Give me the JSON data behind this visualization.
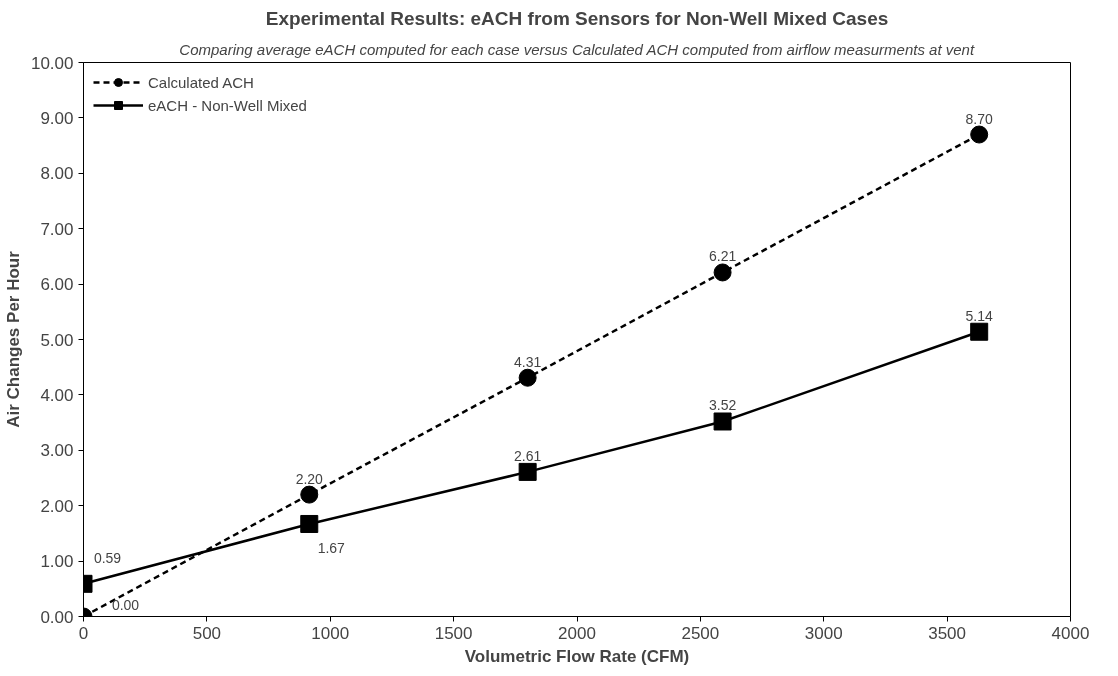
{
  "chart_data": {
    "type": "line",
    "title": "Experimental Results: eACH from Sensors for Non-Well Mixed Cases",
    "subtitle": "Comparing average eACH computed for each case versus Calculated ACH computed from airflow measurments at vent",
    "xlabel": "Volumetric Flow Rate (CFM)",
    "ylabel": "Air Changes Per Hour",
    "x": [
      0,
      915,
      1800,
      2590,
      3630
    ],
    "series": [
      {
        "name": "Calculated ACH",
        "color": "#000000",
        "marker": "circle",
        "line_style": "dashed",
        "values": [
          0.0,
          2.2,
          4.31,
          6.21,
          8.7
        ],
        "value_labels": [
          "0.00",
          "2.20",
          "4.31",
          "6.21",
          "8.70"
        ]
      },
      {
        "name": "eACH - Non-Well Mixed",
        "color": "#000000",
        "marker": "square",
        "line_style": "solid",
        "values": [
          0.59,
          1.67,
          2.61,
          3.52,
          5.14
        ],
        "value_labels": [
          "0.59",
          "1.67",
          "2.61",
          "3.52",
          "5.14"
        ]
      }
    ],
    "xlim": [
      0,
      4000
    ],
    "xticks": [
      0,
      500,
      1000,
      1500,
      2000,
      2500,
      3000,
      3500,
      4000
    ],
    "ylim": [
      0,
      10
    ],
    "yticks": [
      {
        "value": 0,
        "label": "0.00"
      },
      {
        "value": 1,
        "label": "1.00"
      },
      {
        "value": 2,
        "label": "2.00"
      },
      {
        "value": 3,
        "label": "3.00"
      },
      {
        "value": 4,
        "label": "4.00"
      },
      {
        "value": 5,
        "label": "5.00"
      },
      {
        "value": 6,
        "label": "6.00"
      },
      {
        "value": 7,
        "label": "7.00"
      },
      {
        "value": 8,
        "label": "8.00"
      },
      {
        "value": 9,
        "label": "9.00"
      },
      {
        "value": 10,
        "label": "10.00"
      }
    ],
    "grid": false,
    "legend": "top left"
  }
}
